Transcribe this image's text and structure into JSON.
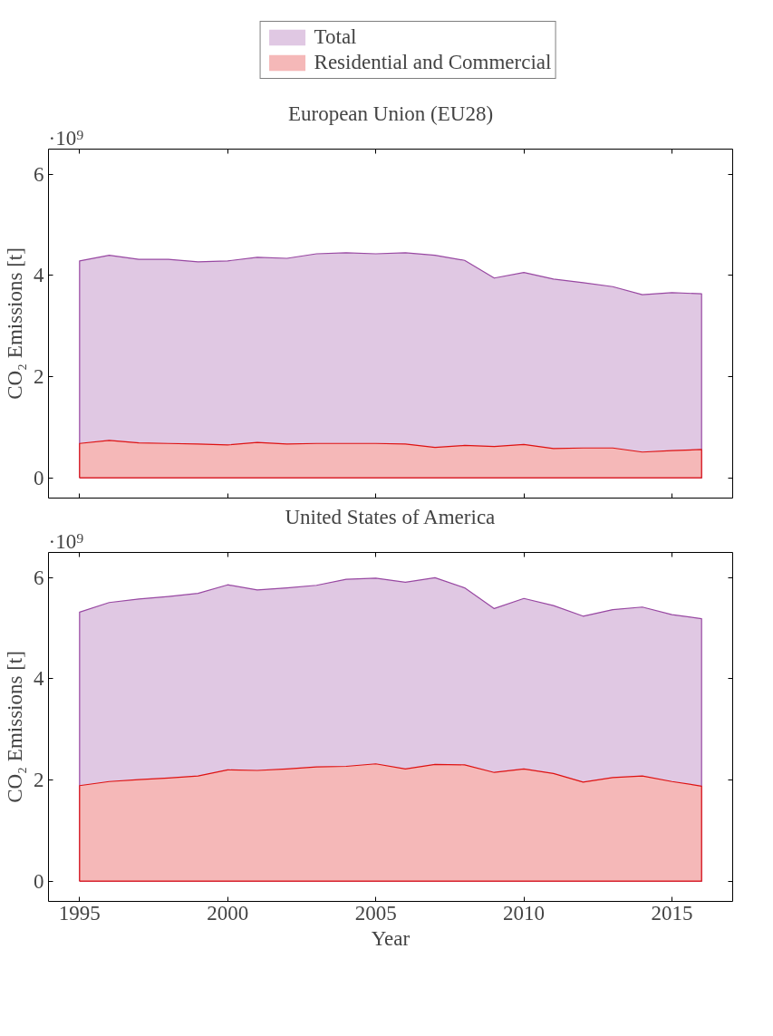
{
  "chart_data": [
    {
      "type": "area",
      "title": "European Union (EU28)",
      "ylabel": "CO₂ Emissions [t]",
      "annotations": [
        "·10⁹"
      ],
      "x": [
        1995,
        1996,
        1997,
        1998,
        1999,
        2000,
        2001,
        2002,
        2003,
        2004,
        2005,
        2006,
        2007,
        2008,
        2009,
        2010,
        2011,
        2012,
        2013,
        2014,
        2015,
        2016
      ],
      "series": [
        {
          "name": "Total",
          "color": "#e0c8e3",
          "values": [
            4.29,
            4.4,
            4.32,
            4.32,
            4.27,
            4.29,
            4.36,
            4.34,
            4.43,
            4.45,
            4.43,
            4.45,
            4.4,
            4.3,
            3.95,
            4.06,
            3.93,
            3.86,
            3.78,
            3.62,
            3.66,
            3.64
          ]
        },
        {
          "name": "Residential and Commercial",
          "color": "#f5b8b8",
          "values": [
            0.68,
            0.74,
            0.69,
            0.68,
            0.67,
            0.65,
            0.7,
            0.67,
            0.68,
            0.68,
            0.68,
            0.67,
            0.6,
            0.64,
            0.62,
            0.66,
            0.58,
            0.59,
            0.59,
            0.51,
            0.54,
            0.56
          ]
        }
      ],
      "xlim": [
        1993.95,
        2017.05
      ],
      "xticks": [
        1995,
        2000,
        2005,
        2010,
        2015
      ],
      "ylim": [
        -0.4,
        6.5
      ],
      "yticks": [
        0,
        2,
        4,
        6
      ],
      "tick_labels": "y",
      "legend": "top",
      "grid": false
    },
    {
      "type": "area",
      "title": "United States of America",
      "xlabel": "Year",
      "ylabel": "CO₂ Emissions [t]",
      "annotations": [
        "·10⁹"
      ],
      "x": [
        1995,
        1996,
        1997,
        1998,
        1999,
        2000,
        2001,
        2002,
        2003,
        2004,
        2005,
        2006,
        2007,
        2008,
        2009,
        2010,
        2011,
        2012,
        2013,
        2014,
        2015,
        2016
      ],
      "series": [
        {
          "color": "#e0c8e3",
          "values": [
            5.32,
            5.51,
            5.58,
            5.63,
            5.69,
            5.86,
            5.76,
            5.8,
            5.85,
            5.97,
            5.99,
            5.91,
            6.0,
            5.8,
            5.39,
            5.59,
            5.45,
            5.24,
            5.37,
            5.42,
            5.27,
            5.19
          ]
        },
        {
          "color": "#f5b8b8",
          "values": [
            1.89,
            1.97,
            2.01,
            2.04,
            2.08,
            2.2,
            2.19,
            2.22,
            2.26,
            2.27,
            2.32,
            2.22,
            2.31,
            2.3,
            2.15,
            2.22,
            2.13,
            1.96,
            2.05,
            2.08,
            1.97,
            1.88
          ]
        }
      ],
      "xlim": [
        1993.95,
        2017.05
      ],
      "xticks": [
        1995,
        2000,
        2005,
        2010,
        2015
      ],
      "ylim": [
        -0.4,
        6.5
      ],
      "yticks": [
        0,
        2,
        4,
        6
      ],
      "legend": false,
      "grid": false
    }
  ]
}
